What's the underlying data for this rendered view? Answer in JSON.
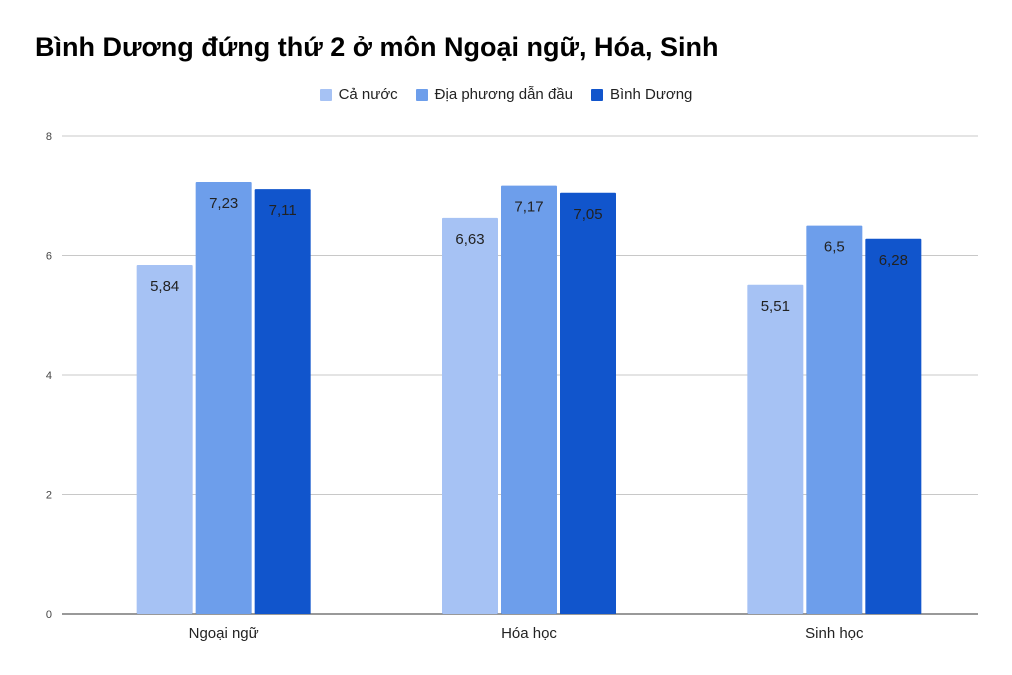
{
  "chart_data": {
    "type": "bar",
    "title": "Bình Dương đứng thứ 2 ở môn Ngoại ngữ, Hóa, Sinh",
    "categories": [
      "Ngoại ngữ",
      "Hóa học",
      "Sinh học"
    ],
    "series": [
      {
        "name": "Cả nước",
        "color": "#a6c2f4",
        "values": [
          5.84,
          6.63,
          5.51
        ],
        "labels": [
          "5,84",
          "6,63",
          "5,51"
        ]
      },
      {
        "name": "Địa phương dẫn đầu",
        "color": "#6d9eeb",
        "values": [
          7.23,
          7.17,
          6.5
        ],
        "labels": [
          "7,23",
          "7,17",
          "6,5"
        ]
      },
      {
        "name": "Bình Dương",
        "color": "#1155cc",
        "values": [
          7.11,
          7.05,
          6.28
        ],
        "labels": [
          "7,11",
          "7,05",
          "6,28"
        ]
      }
    ],
    "yticks": [
      "0",
      "2",
      "4",
      "6",
      "8"
    ],
    "ylim": [
      0,
      8
    ],
    "grid": true,
    "legend_position": "top-center"
  }
}
